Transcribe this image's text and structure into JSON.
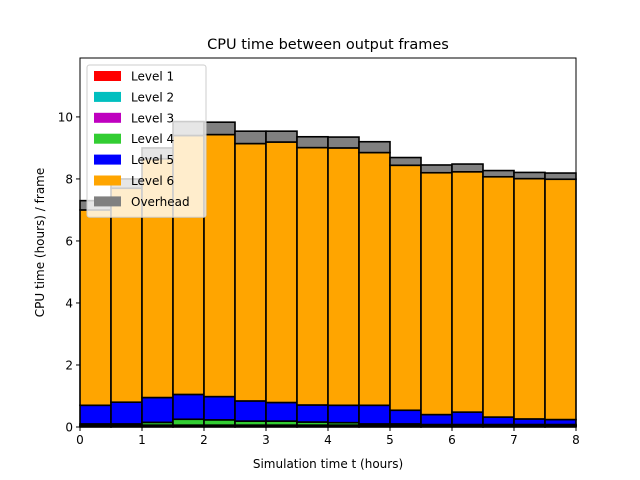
{
  "chart_data": {
    "type": "bar",
    "title": "CPU time between output frames",
    "xlabel": "Simulation time t (hours)",
    "ylabel": "CPU time (hours) / frame",
    "xlim": [
      0,
      8
    ],
    "ylim": [
      0,
      11.9
    ],
    "xticks": [
      "0",
      "1",
      "2",
      "3",
      "4",
      "5",
      "6",
      "7",
      "8"
    ],
    "yticks": [
      "0",
      "2",
      "4",
      "6",
      "8",
      "10"
    ],
    "legend_position": "top-left",
    "bin_edges": [
      0,
      0.5,
      1.0,
      1.5,
      2.0,
      2.5,
      3.0,
      3.5,
      4.0,
      4.5,
      5.0,
      5.5,
      6.0,
      6.5,
      7.0,
      7.5,
      8.0
    ],
    "series": [
      {
        "name": "Level 1",
        "color": "#ff0000",
        "values": [
          0.02,
          0.02,
          0.02,
          0.02,
          0.02,
          0.02,
          0.02,
          0.02,
          0.02,
          0.02,
          0.02,
          0.02,
          0.02,
          0.02,
          0.02,
          0.02
        ]
      },
      {
        "name": "Level 2",
        "color": "#00bfbf",
        "values": [
          0.02,
          0.02,
          0.02,
          0.02,
          0.02,
          0.02,
          0.02,
          0.02,
          0.02,
          0.02,
          0.02,
          0.02,
          0.02,
          0.02,
          0.02,
          0.02
        ]
      },
      {
        "name": "Level 3",
        "color": "#bf00bf",
        "values": [
          0.02,
          0.02,
          0.02,
          0.02,
          0.02,
          0.02,
          0.02,
          0.02,
          0.02,
          0.02,
          0.02,
          0.02,
          0.02,
          0.02,
          0.02,
          0.02
        ]
      },
      {
        "name": "Level 4",
        "color": "#32cd32",
        "values": [
          0.04,
          0.04,
          0.09,
          0.19,
          0.17,
          0.13,
          0.13,
          0.1,
          0.08,
          0.04,
          0.04,
          0.02,
          0.02,
          0.02,
          0.02,
          0.02
        ]
      },
      {
        "name": "Level 5",
        "color": "#0000ff",
        "values": [
          0.6,
          0.7,
          0.8,
          0.8,
          0.75,
          0.65,
          0.6,
          0.55,
          0.56,
          0.6,
          0.44,
          0.32,
          0.4,
          0.24,
          0.18,
          0.16
        ]
      },
      {
        "name": "Level 6",
        "color": "#ffa500",
        "values": [
          6.3,
          6.9,
          7.7,
          8.35,
          8.45,
          8.3,
          8.4,
          8.3,
          8.3,
          8.15,
          7.9,
          7.8,
          7.75,
          7.75,
          7.75,
          7.75
        ]
      },
      {
        "name": "Overhead",
        "color": "#808080",
        "values": [
          0.3,
          0.3,
          0.35,
          0.45,
          0.4,
          0.4,
          0.35,
          0.35,
          0.35,
          0.35,
          0.25,
          0.25,
          0.25,
          0.2,
          0.2,
          0.2
        ]
      }
    ]
  }
}
